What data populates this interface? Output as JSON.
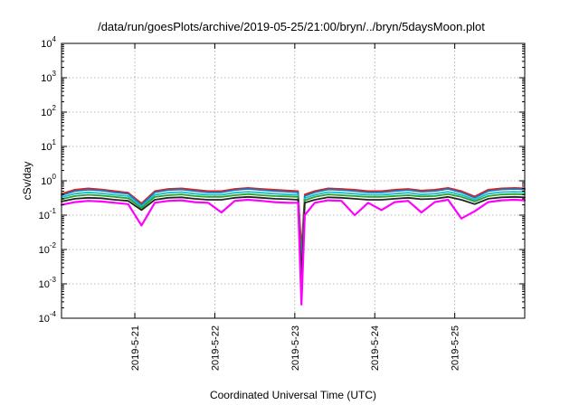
{
  "chart_data": {
    "type": "line",
    "title": "/data/run/goesPlots/archive/2019-05-25/21:00/bryn/../bryn/5daysMoon.plot",
    "xlabel": "Coordinated Universal Time (UTC)",
    "ylabel": "cSv/day",
    "yscale": "log",
    "ylim": [
      0.0001,
      10000
    ],
    "y_ticks": [
      {
        "base": "10",
        "exp": "-4",
        "value": 0.0001
      },
      {
        "base": "10",
        "exp": "-3",
        "value": 0.001
      },
      {
        "base": "10",
        "exp": "-2",
        "value": 0.01
      },
      {
        "base": "10",
        "exp": "-1",
        "value": 0.1
      },
      {
        "base": "10",
        "exp": "0",
        "value": 1
      },
      {
        "base": "10",
        "exp": "1",
        "value": 10
      },
      {
        "base": "10",
        "exp": "2",
        "value": 100
      },
      {
        "base": "10",
        "exp": "3",
        "value": 1000
      },
      {
        "base": "10",
        "exp": "4",
        "value": 10000
      }
    ],
    "xlim": [
      "2019-05-20 02:00",
      "2019-05-25 21:00"
    ],
    "x_ticks": [
      "2019-5-21",
      "2019-5-22",
      "2019-5-23",
      "2019-5-24",
      "2019-5-25"
    ],
    "grid": true,
    "x": [
      "2019-05-20 02:00",
      "2019-05-20 06:00",
      "2019-05-20 10:00",
      "2019-05-20 14:00",
      "2019-05-20 18:00",
      "2019-05-20 22:00",
      "2019-05-21 02:00",
      "2019-05-21 06:00",
      "2019-05-21 10:00",
      "2019-05-21 14:00",
      "2019-05-21 18:00",
      "2019-05-21 22:00",
      "2019-05-22 02:00",
      "2019-05-22 06:00",
      "2019-05-22 10:00",
      "2019-05-22 14:00",
      "2019-05-22 18:00",
      "2019-05-22 22:00",
      "2019-05-23 01:00",
      "2019-05-23 02:00",
      "2019-05-23 03:00",
      "2019-05-23 06:00",
      "2019-05-23 10:00",
      "2019-05-23 14:00",
      "2019-05-23 18:00",
      "2019-05-23 22:00",
      "2019-05-24 02:00",
      "2019-05-24 06:00",
      "2019-05-24 10:00",
      "2019-05-24 14:00",
      "2019-05-24 18:00",
      "2019-05-24 22:00",
      "2019-05-25 02:00",
      "2019-05-25 06:00",
      "2019-05-25 10:00",
      "2019-05-25 14:00",
      "2019-05-25 18:00",
      "2019-05-25 21:00"
    ],
    "series": [
      {
        "color": "#e41a1c",
        "values": [
          0.42,
          0.55,
          0.6,
          0.56,
          0.5,
          0.45,
          0.22,
          0.5,
          0.58,
          0.6,
          0.55,
          0.5,
          0.5,
          0.58,
          0.62,
          0.58,
          0.55,
          0.52,
          0.5,
          0.01,
          0.4,
          0.5,
          0.6,
          0.58,
          0.55,
          0.5,
          0.5,
          0.55,
          0.58,
          0.52,
          0.55,
          0.62,
          0.5,
          0.35,
          0.55,
          0.6,
          0.62,
          0.6
        ]
      },
      {
        "color": "#1f77b4",
        "values": [
          0.38,
          0.5,
          0.55,
          0.52,
          0.46,
          0.42,
          0.2,
          0.46,
          0.54,
          0.56,
          0.5,
          0.46,
          0.46,
          0.54,
          0.58,
          0.54,
          0.5,
          0.48,
          0.46,
          0.004,
          0.36,
          0.46,
          0.56,
          0.54,
          0.5,
          0.46,
          0.46,
          0.5,
          0.54,
          0.48,
          0.5,
          0.58,
          0.46,
          0.32,
          0.5,
          0.56,
          0.58,
          0.56
        ]
      },
      {
        "color": "#17becf",
        "values": [
          0.33,
          0.42,
          0.46,
          0.43,
          0.39,
          0.36,
          0.18,
          0.39,
          0.45,
          0.47,
          0.42,
          0.39,
          0.39,
          0.45,
          0.48,
          0.45,
          0.42,
          0.4,
          0.39,
          0.003,
          0.31,
          0.39,
          0.47,
          0.45,
          0.42,
          0.39,
          0.39,
          0.42,
          0.45,
          0.4,
          0.42,
          0.48,
          0.39,
          0.28,
          0.42,
          0.47,
          0.48,
          0.47
        ]
      },
      {
        "color": "#2ca02c",
        "values": [
          0.29,
          0.36,
          0.39,
          0.37,
          0.34,
          0.31,
          0.16,
          0.34,
          0.38,
          0.4,
          0.36,
          0.34,
          0.34,
          0.38,
          0.41,
          0.38,
          0.36,
          0.35,
          0.34,
          0.002,
          0.27,
          0.34,
          0.4,
          0.38,
          0.36,
          0.34,
          0.34,
          0.36,
          0.38,
          0.35,
          0.36,
          0.41,
          0.34,
          0.25,
          0.36,
          0.4,
          0.41,
          0.4
        ]
      },
      {
        "color": "#222222",
        "values": [
          0.25,
          0.3,
          0.32,
          0.31,
          0.28,
          0.26,
          0.14,
          0.28,
          0.32,
          0.33,
          0.3,
          0.28,
          0.28,
          0.32,
          0.34,
          0.32,
          0.3,
          0.29,
          0.28,
          0.0015,
          0.23,
          0.28,
          0.33,
          0.32,
          0.3,
          0.28,
          0.28,
          0.3,
          0.32,
          0.29,
          0.3,
          0.34,
          0.28,
          0.21,
          0.3,
          0.33,
          0.34,
          0.33
        ]
      },
      {
        "color": "#ff00ff",
        "values": [
          0.2,
          0.24,
          0.26,
          0.25,
          0.23,
          0.21,
          0.05,
          0.23,
          0.26,
          0.27,
          0.24,
          0.23,
          0.12,
          0.26,
          0.28,
          0.26,
          0.24,
          0.23,
          0.23,
          0.00025,
          0.1,
          0.23,
          0.27,
          0.26,
          0.1,
          0.23,
          0.14,
          0.24,
          0.26,
          0.12,
          0.24,
          0.28,
          0.08,
          0.13,
          0.24,
          0.27,
          0.28,
          0.27
        ]
      }
    ]
  }
}
